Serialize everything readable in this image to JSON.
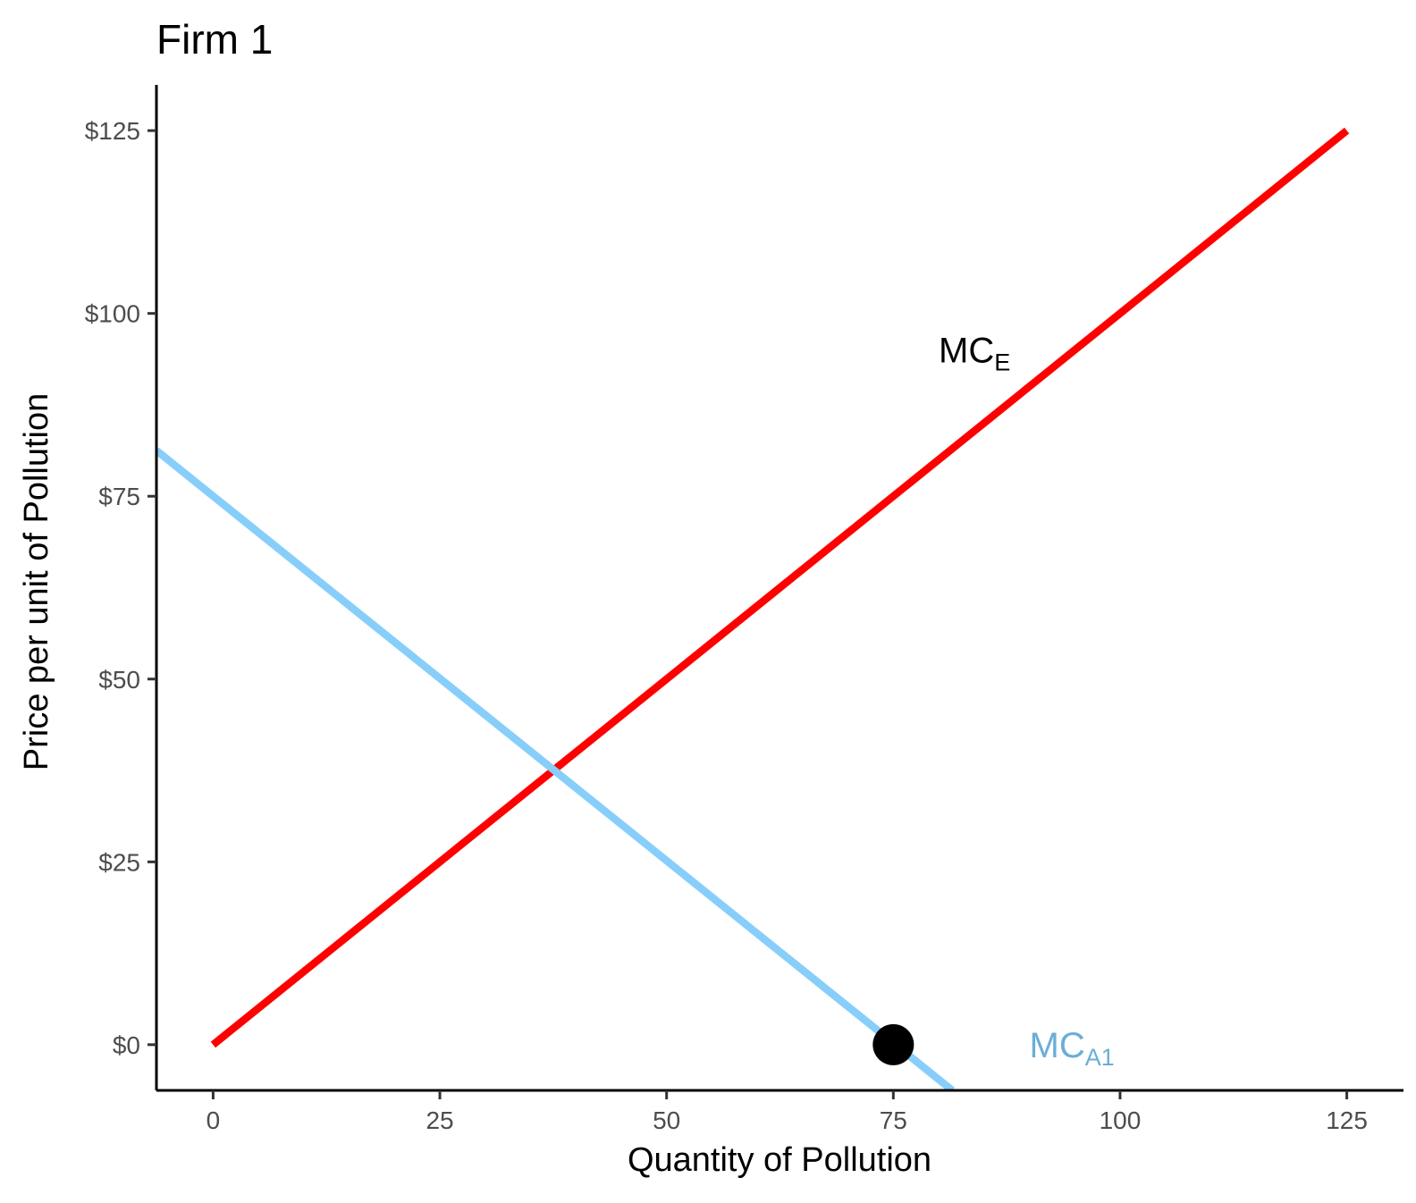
{
  "chart_data": {
    "type": "line",
    "title": "Firm 1",
    "xlabel": "Quantity of Pollution",
    "ylabel": "Price per unit of Pollution",
    "xlim": [
      -6.25,
      131.25
    ],
    "ylim": [
      -6.25,
      131.25
    ],
    "x_ticks": [
      0,
      25,
      50,
      75,
      100,
      125
    ],
    "x_tick_labels": [
      "0",
      "25",
      "50",
      "75",
      "100",
      "125"
    ],
    "y_ticks": [
      0,
      25,
      50,
      75,
      100,
      125
    ],
    "y_tick_labels": [
      "$0",
      "$25",
      "$50",
      "$75",
      "$100",
      "$125"
    ],
    "grid": false,
    "series": [
      {
        "name": "MC_E",
        "label_main": "MC",
        "label_sub": "E",
        "color": "#ff0000",
        "label_color": "#000000",
        "x": [
          0,
          125
        ],
        "y": [
          0,
          125
        ],
        "label_at": [
          80,
          95
        ]
      },
      {
        "name": "MC_A1",
        "label_main": "MC",
        "label_sub": "A1",
        "color": "#87cefa",
        "label_color": "#6baed6",
        "x": [
          -6.25,
          81.5
        ],
        "y": [
          81.25,
          -6.25
        ],
        "label_at": [
          90,
          0
        ]
      }
    ],
    "points": [
      {
        "x": 75,
        "y": 0,
        "color": "#000000"
      }
    ]
  }
}
